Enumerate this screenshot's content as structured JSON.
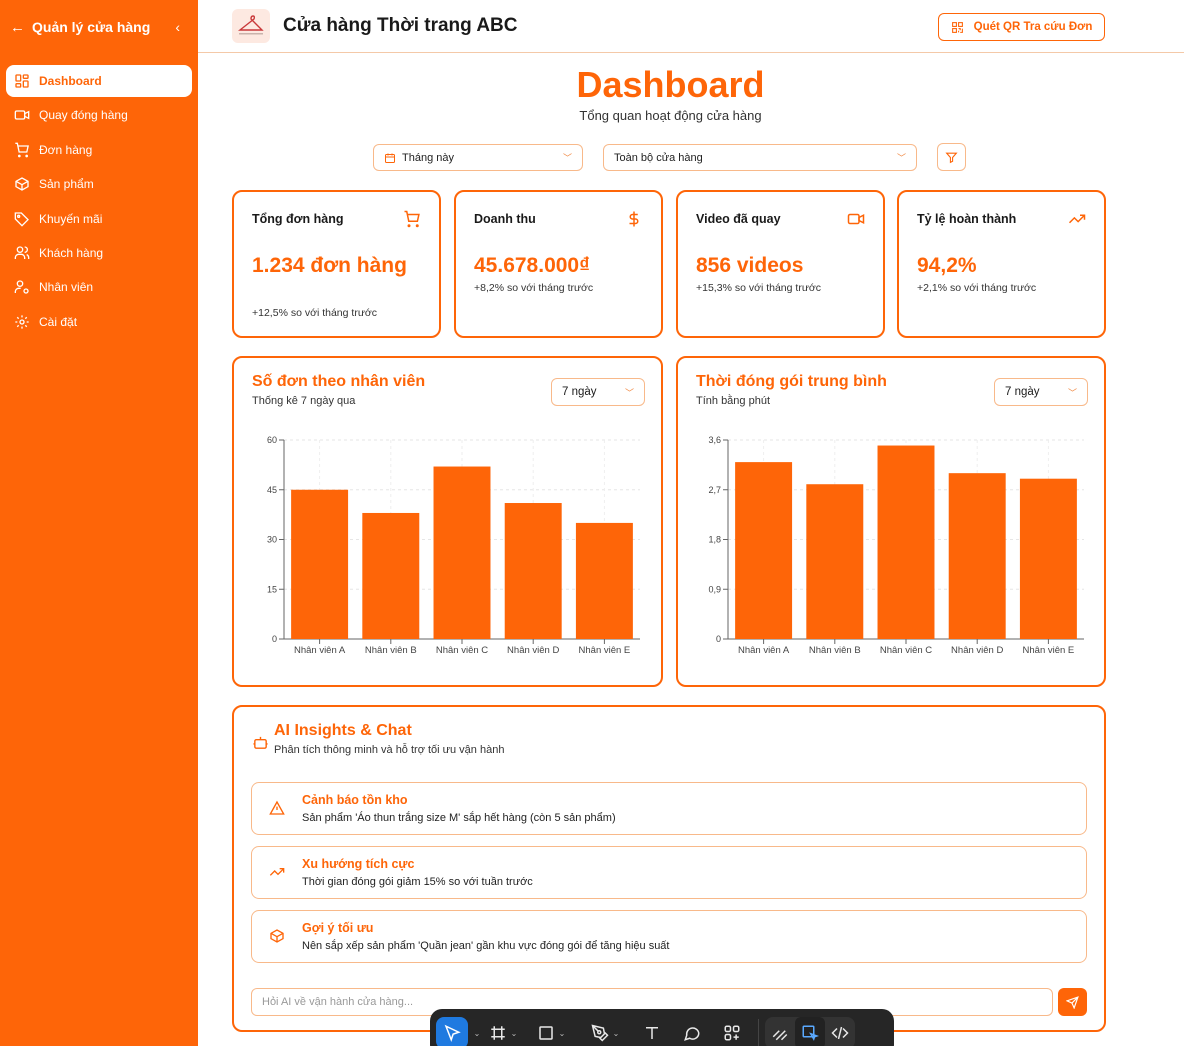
{
  "sidebar": {
    "title": "Quản lý cửa hàng",
    "items": [
      {
        "label": "Dashboard",
        "icon": "dashboard-icon"
      },
      {
        "label": "Quay đóng hàng",
        "icon": "video-icon"
      },
      {
        "label": "Đơn hàng",
        "icon": "cart-icon"
      },
      {
        "label": "Sản phẩm",
        "icon": "package-icon"
      },
      {
        "label": "Khuyến mãi",
        "icon": "tag-icon"
      },
      {
        "label": "Khách hàng",
        "icon": "users-icon"
      },
      {
        "label": "Nhân viên",
        "icon": "user-cog-icon"
      },
      {
        "label": "Cài đặt",
        "icon": "gear-icon"
      }
    ]
  },
  "header": {
    "title": "Cửa hàng Thời trang ABC",
    "qr_button": "Quét QR Tra cứu Đơn"
  },
  "page": {
    "title": "Dashboard",
    "subtitle": "Tổng quan hoạt động cửa hàng"
  },
  "filters": {
    "period": "Tháng này",
    "store": "Toàn bộ cửa hàng"
  },
  "stats": [
    {
      "label": "Tổng đơn hàng",
      "value": "1.234 đơn hàng",
      "delta": "+12,5% so với tháng trước",
      "icon": "cart-icon"
    },
    {
      "label": "Doanh thu",
      "value": "45.678.000₫",
      "delta": "+8,2% so với tháng trước",
      "icon": "dollar-icon"
    },
    {
      "label": "Video đã quay",
      "value": "856 videos",
      "delta": "+15,3% so với tháng trước",
      "icon": "video-icon"
    },
    {
      "label": "Tỷ lệ hoàn thành",
      "value": "94,2%",
      "delta": "+2,1% so với tháng trước",
      "icon": "trending-up-icon"
    }
  ],
  "charts": {
    "orders": {
      "title": "Số đơn theo nhân viên",
      "subtitle": "Thống kê 7 ngày qua",
      "range": "7 ngày"
    },
    "packing": {
      "title": "Thời đóng gói trung bình",
      "subtitle": "Tính bằng phút",
      "range": "7 ngày"
    }
  },
  "chart_data": [
    {
      "type": "bar",
      "title": "Số đơn theo nhân viên",
      "categories": [
        "Nhân viên A",
        "Nhân viên B",
        "Nhân viên C",
        "Nhân viên D",
        "Nhân viên E"
      ],
      "values": [
        45,
        38,
        52,
        41,
        35
      ],
      "ylim": [
        0,
        60
      ],
      "yticks": [
        "0",
        "15",
        "30",
        "45",
        "60"
      ],
      "color": "#fe6508"
    },
    {
      "type": "bar",
      "title": "Thời đóng gói trung bình",
      "categories": [
        "Nhân viên A",
        "Nhân viên B",
        "Nhân viên C",
        "Nhân viên D",
        "Nhân viên E"
      ],
      "values": [
        3.2,
        2.8,
        3.5,
        3.0,
        2.9
      ],
      "ylim": [
        0,
        3.6
      ],
      "yticks": [
        "0",
        "0,9",
        "1,8",
        "2,7",
        "3,6"
      ],
      "color": "#fe6508"
    }
  ],
  "ai": {
    "title": "AI Insights & Chat",
    "subtitle": "Phân tích thông minh và hỗ trợ tối ưu vận hành",
    "insights": [
      {
        "title": "Cảnh báo tồn kho",
        "text": "Sản phẩm 'Áo thun trắng size M' sắp hết hàng (còn 5 sản phẩm)",
        "icon": "warning-icon"
      },
      {
        "title": "Xu hướng tích cực",
        "text": "Thời gian đóng gói giảm 15% so với tuần trước",
        "icon": "trending-up-icon"
      },
      {
        "title": "Gợi ý tối ưu",
        "text": "Nên sắp xếp sản phẩm 'Quần jean' gần khu vực đóng gói để tăng hiệu suất",
        "icon": "package-icon"
      }
    ],
    "chat_placeholder": "Hỏi AI về vận hành cửa hàng..."
  },
  "colors": {
    "accent": "#fe6508",
    "border": "#f8b98a"
  }
}
